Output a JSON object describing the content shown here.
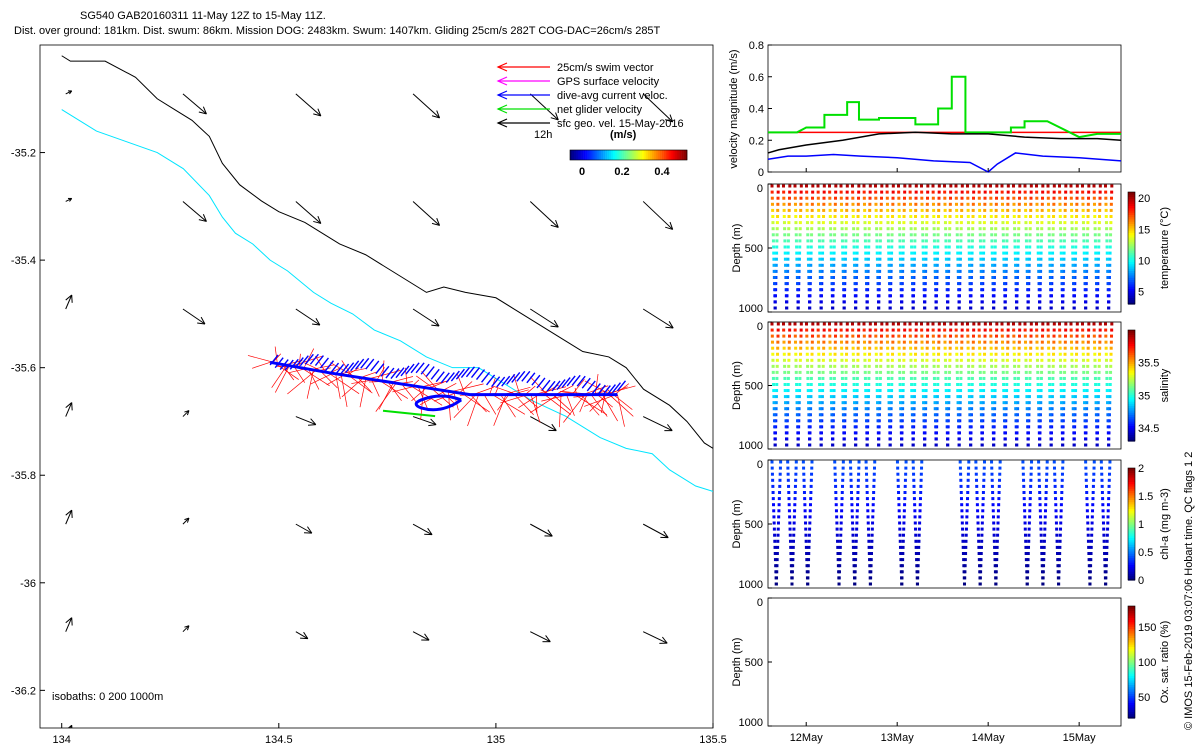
{
  "header": {
    "title": "SG540 GAB20160311 11-May 12Z to 15-May 11Z.",
    "subtitle": "Dist. over ground: 181km. Dist. swum: 86km. Mission DOG: 2483km. Swum: 1407km. Gliding 25cm/s 282T COG-DAC=26cm/s 285T"
  },
  "colors": {
    "swim_vector": "#ff0000",
    "gps_surface": "#ff00ff",
    "dive_avg_current": "#0000ff",
    "net_glider": "#00e000",
    "sfc_geo": "#000000",
    "isobath_0": "#000000",
    "isobath_200": "#00e5ff",
    "reference_line": "#ff0000"
  },
  "map": {
    "legend": [
      {
        "label": "25cm/s swim vector",
        "color": "#ff0000"
      },
      {
        "label": "GPS surface velocity",
        "color": "#ff00ff"
      },
      {
        "label": "dive-avg current veloc.",
        "color": "#0000ff"
      },
      {
        "label": "net glider velocity",
        "color": "#00e000"
      },
      {
        "label": "sfc geo. vel. 15-May-2016",
        "color": "#000000"
      }
    ],
    "time_label": "12h",
    "colorbar_title": "(m/s)",
    "colorbar_ticks": [
      "0",
      "0.2",
      "0.4"
    ],
    "isobath_label": "isobaths: 0   200  1000m"
  },
  "chart_data": [
    {
      "type": "scatter",
      "title": "",
      "xlabel": "",
      "ylabel": "",
      "xlim": [
        133.95,
        135.5
      ],
      "ylim": [
        -36.27,
        -35.0
      ],
      "xticks": [
        "134",
        "134.5",
        "135",
        "135.5"
      ],
      "yticks": [
        "-35.2",
        "-35.4",
        "-35.6",
        "-35.8",
        "-36",
        "-36.2"
      ],
      "series": [
        {
          "name": "isobath 0m",
          "x": [
            134.0,
            134.02,
            134.1,
            134.17,
            134.22,
            134.26,
            134.3,
            134.34,
            134.37,
            134.41,
            134.46,
            134.5,
            134.56,
            134.6,
            134.64,
            134.7,
            134.74,
            134.8,
            134.84,
            134.88,
            134.93,
            135.0,
            135.04,
            135.1,
            135.16,
            135.2,
            135.26,
            135.3,
            135.34,
            135.4,
            135.44,
            135.48,
            135.5
          ],
          "y": [
            -35.02,
            -35.03,
            -35.03,
            -35.06,
            -35.1,
            -35.12,
            -35.14,
            -35.17,
            -35.22,
            -35.26,
            -35.29,
            -35.31,
            -35.33,
            -35.35,
            -35.37,
            -35.39,
            -35.41,
            -35.44,
            -35.46,
            -35.45,
            -35.46,
            -35.47,
            -35.49,
            -35.52,
            -35.55,
            -35.57,
            -35.58,
            -35.6,
            -35.64,
            -35.67,
            -35.7,
            -35.74,
            -35.75
          ]
        },
        {
          "name": "isobath 200m",
          "x": [
            134.0,
            134.08,
            134.15,
            134.22,
            134.28,
            134.34,
            134.37,
            134.4,
            134.44,
            134.48,
            134.52,
            134.58,
            134.62,
            134.67,
            134.72,
            134.78,
            134.84,
            134.9,
            134.96,
            135.02,
            135.08,
            135.16,
            135.24,
            135.3,
            135.36,
            135.4,
            135.46,
            135.5
          ],
          "y": [
            -35.12,
            -35.16,
            -35.18,
            -35.2,
            -35.23,
            -35.28,
            -35.32,
            -35.35,
            -35.37,
            -35.4,
            -35.42,
            -35.46,
            -35.48,
            -35.5,
            -35.53,
            -35.55,
            -35.58,
            -35.6,
            -35.6,
            -35.63,
            -35.66,
            -35.69,
            -35.73,
            -35.75,
            -35.76,
            -35.79,
            -35.82,
            -35.83
          ]
        },
        {
          "name": "glider track",
          "x": [
            134.48,
            134.55,
            134.62,
            134.7,
            134.78,
            134.86,
            134.94,
            135.02,
            135.1,
            135.18,
            135.24,
            135.28
          ],
          "y": [
            -35.59,
            -35.6,
            -35.61,
            -35.62,
            -35.63,
            -35.64,
            -35.65,
            -35.65,
            -35.65,
            -35.65,
            -35.65,
            -35.65
          ]
        }
      ]
    },
    {
      "type": "line",
      "title": "",
      "xlabel": "",
      "ylabel": "velocity magnitude (m/s)",
      "xlim": [
        11.58,
        15.46
      ],
      "ylim": [
        0,
        0.8
      ],
      "yticks": [
        "0",
        "0.2",
        "0.4",
        "0.6",
        "0.8"
      ],
      "series": [
        {
          "name": "swim speed",
          "color": "#ff0000",
          "x": [
            11.58,
            15.46
          ],
          "y": [
            0.25,
            0.25
          ]
        },
        {
          "name": "net glider speed",
          "color": "#00e000",
          "x": [
            11.58,
            11.9,
            12.0,
            12.2,
            12.2,
            12.45,
            12.45,
            12.58,
            12.58,
            12.8,
            12.8,
            13.2,
            13.2,
            13.45,
            13.45,
            13.6,
            13.6,
            13.75,
            13.75,
            14.25,
            14.25,
            14.4,
            14.4,
            14.65,
            15.0,
            15.2,
            15.46
          ],
          "y": [
            0.25,
            0.25,
            0.28,
            0.28,
            0.36,
            0.36,
            0.44,
            0.44,
            0.33,
            0.33,
            0.34,
            0.34,
            0.3,
            0.3,
            0.4,
            0.4,
            0.6,
            0.6,
            0.25,
            0.25,
            0.28,
            0.28,
            0.32,
            0.32,
            0.22,
            0.24,
            0.24
          ]
        },
        {
          "name": "glider speed",
          "color": "#000000",
          "x": [
            11.58,
            11.7,
            12.0,
            12.4,
            12.8,
            13.2,
            13.6,
            14.0,
            14.4,
            14.8,
            15.2,
            15.46
          ],
          "y": [
            0.12,
            0.14,
            0.17,
            0.2,
            0.24,
            0.25,
            0.24,
            0.24,
            0.22,
            0.21,
            0.21,
            0.2
          ]
        },
        {
          "name": "dive-avg current",
          "color": "#0000ff",
          "x": [
            11.58,
            11.8,
            12.0,
            12.3,
            12.6,
            13.0,
            13.4,
            13.8,
            14.0,
            14.1,
            14.3,
            14.6,
            15.0,
            15.46
          ],
          "y": [
            0.08,
            0.1,
            0.1,
            0.11,
            0.1,
            0.09,
            0.07,
            0.06,
            0.0,
            0.05,
            0.12,
            0.1,
            0.09,
            0.07
          ]
        }
      ]
    },
    {
      "type": "scatter",
      "title": "",
      "xlabel": "",
      "ylabel": "Depth (m)",
      "colorbar_label": "temperature (°C)",
      "ylim": [
        1000,
        0
      ],
      "yticks": [
        "0",
        "500",
        "1000"
      ],
      "colorbar_range": [
        3,
        21
      ],
      "colorbar_ticks": [
        "5",
        "10",
        "15",
        "20"
      ],
      "dive_count": 30,
      "surface_value": 19,
      "bottom_value": 4
    },
    {
      "type": "scatter",
      "title": "",
      "xlabel": "",
      "ylabel": "Depth (m)",
      "colorbar_label": "salinity",
      "ylim": [
        1000,
        0
      ],
      "yticks": [
        "0",
        "500",
        "1000"
      ],
      "colorbar_range": [
        34.3,
        36.0
      ],
      "colorbar_ticks": [
        "34.5",
        "35",
        "35.5"
      ],
      "dive_count": 30,
      "surface_value": 35.8,
      "bottom_value": 34.4
    },
    {
      "type": "scatter",
      "title": "",
      "xlabel": "",
      "ylabel": "Depth (m)",
      "colorbar_label": "chl-a (mg m-3)",
      "ylim": [
        1000,
        0
      ],
      "yticks": [
        "0",
        "500",
        "1000"
      ],
      "colorbar_range": [
        0,
        2
      ],
      "colorbar_ticks": [
        "0",
        "0.5",
        "1",
        "1.5",
        "2"
      ],
      "surface_value": 0.4,
      "bottom_value": 0.0
    },
    {
      "type": "scatter",
      "title": "",
      "xlabel": "",
      "ylabel": "Depth (m)",
      "colorbar_label": "Ox. sat. ratio (%)",
      "ylim": [
        1000,
        0
      ],
      "yticks": [
        "0",
        "500",
        "1000"
      ],
      "xticks": [
        "12May",
        "13May",
        "14May",
        "15May"
      ],
      "colorbar_range": [
        20,
        180
      ],
      "colorbar_ticks": [
        "50",
        "100",
        "150"
      ]
    }
  ],
  "footer": {
    "credit": "© IMOS 15-Feb-2019 03:07:06 Hobart time. QC flags 1  2"
  }
}
